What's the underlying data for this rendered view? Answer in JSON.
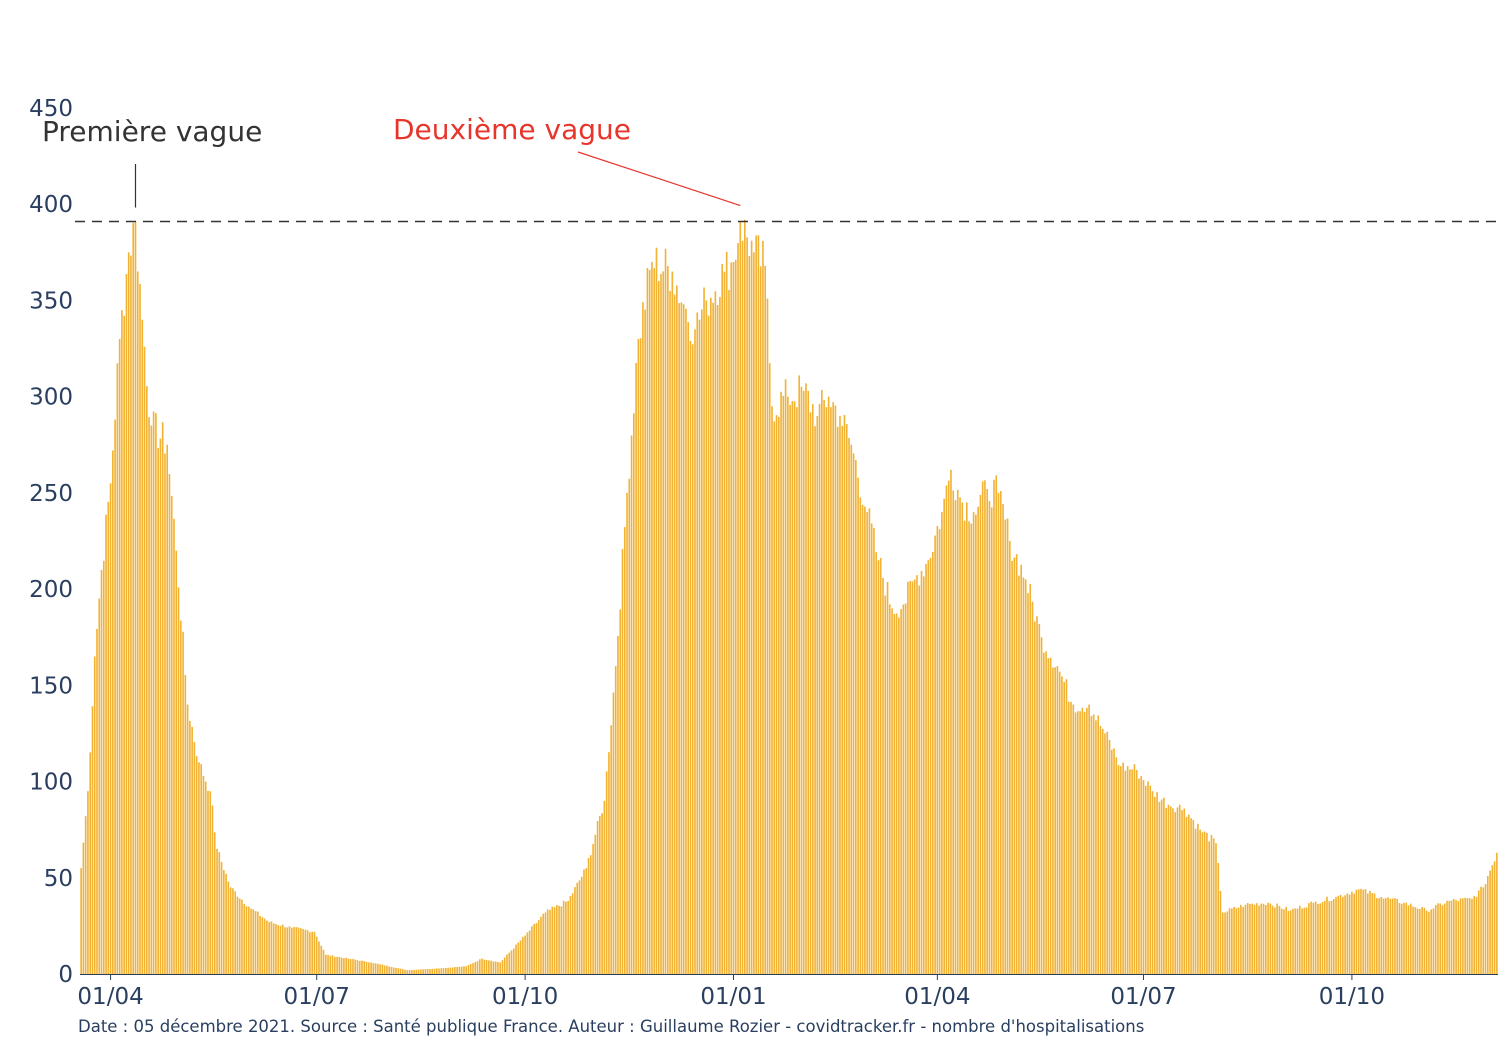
{
  "chart_data": {
    "type": "bar",
    "title": "",
    "xlabel": "",
    "ylabel": "",
    "ylim": [
      0,
      450
    ],
    "yticks": [
      "0",
      "50",
      "100",
      "150",
      "200",
      "250",
      "300",
      "350",
      "400",
      "450"
    ],
    "xticks": [
      "01/04",
      "01/07",
      "01/10",
      "01/01",
      "01/04",
      "01/07",
      "01/10"
    ],
    "grid": false,
    "bar_color": "#f2b233",
    "reference_line": {
      "value": 391,
      "style": "dashed",
      "color": "#333333"
    },
    "annotations": [
      {
        "text": "Première vague",
        "color": "#333333"
      },
      {
        "text": "Deuxième vague",
        "color": "#e8352c"
      }
    ],
    "x_start": "2020-03-19",
    "x_end": "2021-12-04",
    "values_keypoints": [
      [
        "2020-03-19",
        55
      ],
      [
        "2020-03-22",
        95
      ],
      [
        "2020-03-25",
        165
      ],
      [
        "2020-03-28",
        210
      ],
      [
        "2020-04-01",
        255
      ],
      [
        "2020-04-05",
        330
      ],
      [
        "2020-04-09",
        375
      ],
      [
        "2020-04-12",
        391
      ],
      [
        "2020-04-15",
        340
      ],
      [
        "2020-04-19",
        285
      ],
      [
        "2020-04-26",
        275
      ],
      [
        "2020-04-30",
        220
      ],
      [
        "2020-05-05",
        140
      ],
      [
        "2020-05-10",
        110
      ],
      [
        "2020-05-15",
        95
      ],
      [
        "2020-05-18",
        65
      ],
      [
        "2020-05-24",
        45
      ],
      [
        "2020-06-01",
        35
      ],
      [
        "2020-06-10",
        27
      ],
      [
        "2020-06-20",
        24
      ],
      [
        "2020-06-30",
        22
      ],
      [
        "2020-07-05",
        10
      ],
      [
        "2020-07-15",
        8
      ],
      [
        "2020-07-25",
        6
      ],
      [
        "2020-08-10",
        2
      ],
      [
        "2020-08-25",
        3
      ],
      [
        "2020-09-05",
        4
      ],
      [
        "2020-09-12",
        8
      ],
      [
        "2020-09-20",
        6
      ],
      [
        "2020-10-01",
        20
      ],
      [
        "2020-10-10",
        32
      ],
      [
        "2020-10-20",
        38
      ],
      [
        "2020-10-28",
        55
      ],
      [
        "2020-11-05",
        90
      ],
      [
        "2020-11-10",
        160
      ],
      [
        "2020-11-15",
        250
      ],
      [
        "2020-11-20",
        330
      ],
      [
        "2020-11-26",
        370
      ],
      [
        "2020-12-05",
        365
      ],
      [
        "2020-12-10",
        348
      ],
      [
        "2020-12-15",
        335
      ],
      [
        "2020-12-20",
        350
      ],
      [
        "2020-12-28",
        365
      ],
      [
        "2021-01-01",
        370
      ],
      [
        "2021-01-04",
        391
      ],
      [
        "2021-01-10",
        375
      ],
      [
        "2021-01-15",
        368
      ],
      [
        "2021-01-18",
        295
      ],
      [
        "2021-01-25",
        300
      ],
      [
        "2021-02-01",
        303
      ],
      [
        "2021-02-07",
        290
      ],
      [
        "2021-02-12",
        300
      ],
      [
        "2021-02-17",
        290
      ],
      [
        "2021-02-22",
        275
      ],
      [
        "2021-03-01",
        240
      ],
      [
        "2021-03-06",
        215
      ],
      [
        "2021-03-12",
        190
      ],
      [
        "2021-03-17",
        192
      ],
      [
        "2021-03-22",
        205
      ],
      [
        "2021-03-28",
        215
      ],
      [
        "2021-04-03",
        240
      ],
      [
        "2021-04-07",
        262
      ],
      [
        "2021-04-12",
        245
      ],
      [
        "2021-04-17",
        240
      ],
      [
        "2021-04-23",
        252
      ],
      [
        "2021-04-28",
        250
      ],
      [
        "2021-05-03",
        225
      ],
      [
        "2021-05-10",
        205
      ],
      [
        "2021-05-17",
        175
      ],
      [
        "2021-05-24",
        160
      ],
      [
        "2021-05-31",
        140
      ],
      [
        "2021-06-07",
        140
      ],
      [
        "2021-06-14",
        125
      ],
      [
        "2021-06-21",
        108
      ],
      [
        "2021-06-28",
        106
      ],
      [
        "2021-07-05",
        95
      ],
      [
        "2021-07-12",
        88
      ],
      [
        "2021-07-19",
        86
      ],
      [
        "2021-07-26",
        75
      ],
      [
        "2021-08-02",
        68
      ],
      [
        "2021-08-05",
        32
      ],
      [
        "2021-08-15",
        36
      ],
      [
        "2021-08-25",
        37
      ],
      [
        "2021-09-04",
        33
      ],
      [
        "2021-09-14",
        37
      ],
      [
        "2021-09-24",
        40
      ],
      [
        "2021-10-04",
        44
      ],
      [
        "2021-10-14",
        40
      ],
      [
        "2021-10-24",
        37
      ],
      [
        "2021-11-03",
        33
      ],
      [
        "2021-11-13",
        38
      ],
      [
        "2021-11-23",
        39
      ],
      [
        "2021-11-28",
        45
      ],
      [
        "2021-12-04",
        63
      ]
    ]
  },
  "footnote": "Date : 05 décembre 2021. Source : Santé publique France. Auteur : Guillaume Rozier - covidtracker.fr - nombre d'hospitalisations"
}
